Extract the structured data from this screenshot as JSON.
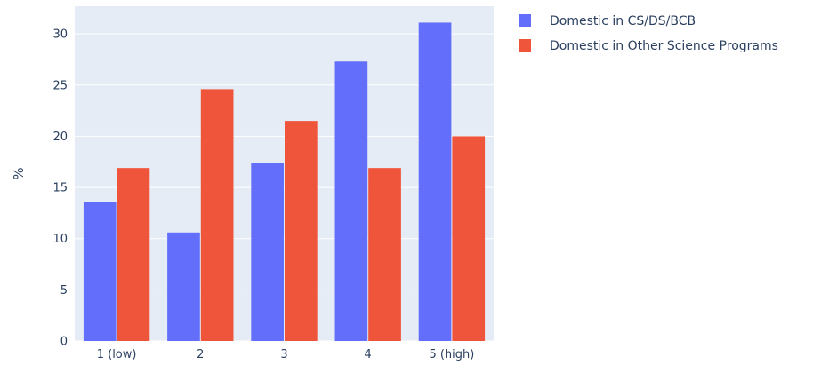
{
  "chart_data": {
    "type": "bar",
    "categories": [
      "1 (low)",
      "2",
      "3",
      "4",
      "5 (high)"
    ],
    "series": [
      {
        "name": "Domestic in CS/DS/BCB",
        "values": [
          13.6,
          10.6,
          17.4,
          27.3,
          31.1
        ]
      },
      {
        "name": "Domestic in Other Science Programs",
        "values": [
          16.9,
          24.6,
          21.5,
          16.9,
          20.0
        ]
      }
    ],
    "title": "",
    "xlabel": "",
    "ylabel": "%",
    "ylim": [
      0,
      32.7
    ],
    "yticks": [
      0,
      5,
      10,
      15,
      20,
      25,
      30
    ],
    "grid": true,
    "legend_position": "top-right",
    "colors": {
      "plot_background": "#e5ecf6",
      "gridline": "#ffffff",
      "text": "#2a3f5f",
      "series": [
        "#636efa",
        "#ef553b"
      ]
    }
  }
}
